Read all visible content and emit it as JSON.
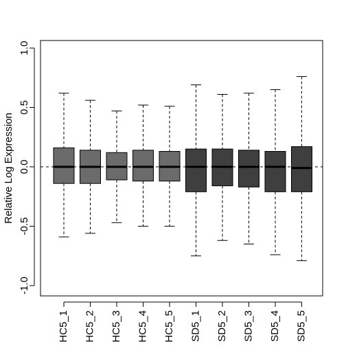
{
  "chart_data": {
    "type": "boxplot",
    "title": "",
    "xlabel": "",
    "ylabel": "Relative Log Expression",
    "ylim": [
      -1.0,
      1.0
    ],
    "yticks": [
      -1.0,
      -0.5,
      0.0,
      0.5,
      1.0
    ],
    "ytick_labels": [
      "-1.0",
      "-0.5",
      "0.0",
      "0.5",
      "1.0"
    ],
    "reference_line": 0.0,
    "grid": false,
    "legend": "none",
    "categories": [
      "HC5_1",
      "HC5_2",
      "HC5_3",
      "HC5_4",
      "HC5_5",
      "SD5_1",
      "SD5_2",
      "SD5_3",
      "SD5_4",
      "SD5_5"
    ],
    "boxes": [
      {
        "name": "HC5_1",
        "whisker_low": -0.59,
        "q1": -0.14,
        "median": 0.0,
        "q3": 0.16,
        "whisker_high": 0.62,
        "color": "#6b6b6b"
      },
      {
        "name": "HC5_2",
        "whisker_low": -0.56,
        "q1": -0.14,
        "median": 0.0,
        "q3": 0.14,
        "whisker_high": 0.56,
        "color": "#6b6b6b"
      },
      {
        "name": "HC5_3",
        "whisker_low": -0.47,
        "q1": -0.11,
        "median": 0.0,
        "q3": 0.12,
        "whisker_high": 0.47,
        "color": "#6b6b6b"
      },
      {
        "name": "HC5_4",
        "whisker_low": -0.5,
        "q1": -0.12,
        "median": 0.0,
        "q3": 0.14,
        "whisker_high": 0.52,
        "color": "#6b6b6b"
      },
      {
        "name": "HC5_5",
        "whisker_low": -0.5,
        "q1": -0.12,
        "median": 0.0,
        "q3": 0.13,
        "whisker_high": 0.51,
        "color": "#6b6b6b"
      },
      {
        "name": "SD5_1",
        "whisker_low": -0.75,
        "q1": -0.21,
        "median": 0.0,
        "q3": 0.15,
        "whisker_high": 0.69,
        "color": "#3f3f3f"
      },
      {
        "name": "SD5_2",
        "whisker_low": -0.62,
        "q1": -0.16,
        "median": 0.0,
        "q3": 0.15,
        "whisker_high": 0.61,
        "color": "#3f3f3f"
      },
      {
        "name": "SD5_3",
        "whisker_low": -0.65,
        "q1": -0.17,
        "median": 0.0,
        "q3": 0.14,
        "whisker_high": 0.62,
        "color": "#3f3f3f"
      },
      {
        "name": "SD5_4",
        "whisker_low": -0.74,
        "q1": -0.21,
        "median": 0.0,
        "q3": 0.13,
        "whisker_high": 0.65,
        "color": "#3f3f3f"
      },
      {
        "name": "SD5_5",
        "whisker_low": -0.79,
        "q1": -0.21,
        "median": -0.01,
        "q3": 0.17,
        "whisker_high": 0.76,
        "color": "#3f3f3f"
      }
    ]
  }
}
